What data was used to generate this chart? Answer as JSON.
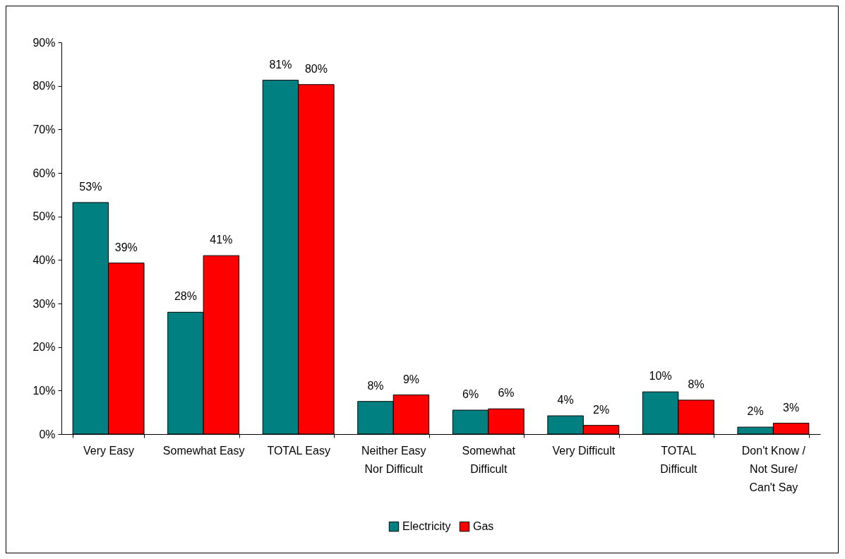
{
  "chart_data": {
    "type": "bar",
    "categories": [
      "Very Easy",
      "Somewhat Easy",
      "TOTAL Easy",
      "Neither Easy Nor Difficult",
      "Somewhat Difficult",
      "Very Difficult",
      "TOTAL Difficult",
      "Don't Know / Not Sure/ Can't Say"
    ],
    "series": [
      {
        "name": "Electricity",
        "color": "#008080",
        "values": [
          53.2,
          28,
          81.3,
          7.5,
          5.5,
          4.2,
          9.7,
          1.6
        ],
        "value_labels": [
          "53%",
          "28%",
          "81%",
          "8%",
          "6%",
          "4%",
          "10%",
          "2%"
        ]
      },
      {
        "name": "Gas",
        "color": "#ff0000",
        "values": [
          39.3,
          41,
          80.3,
          9,
          5.8,
          2,
          7.8,
          2.5
        ],
        "value_labels": [
          "39%",
          "41%",
          "80%",
          "9%",
          "6%",
          "2%",
          "8%",
          "3%"
        ]
      }
    ],
    "ylim": [
      0,
      90
    ],
    "yticks": [
      {
        "value": 0,
        "label": "0%"
      },
      {
        "value": 10,
        "label": "10%"
      },
      {
        "value": 20,
        "label": "20%"
      },
      {
        "value": 30,
        "label": "30%"
      },
      {
        "value": 40,
        "label": "40%"
      },
      {
        "value": 50,
        "label": "50%"
      },
      {
        "value": 60,
        "label": "60%"
      },
      {
        "value": 70,
        "label": "70%"
      },
      {
        "value": 80,
        "label": "80%"
      },
      {
        "value": 90,
        "label": "90%"
      }
    ],
    "grid": false,
    "legend": "bottom"
  }
}
